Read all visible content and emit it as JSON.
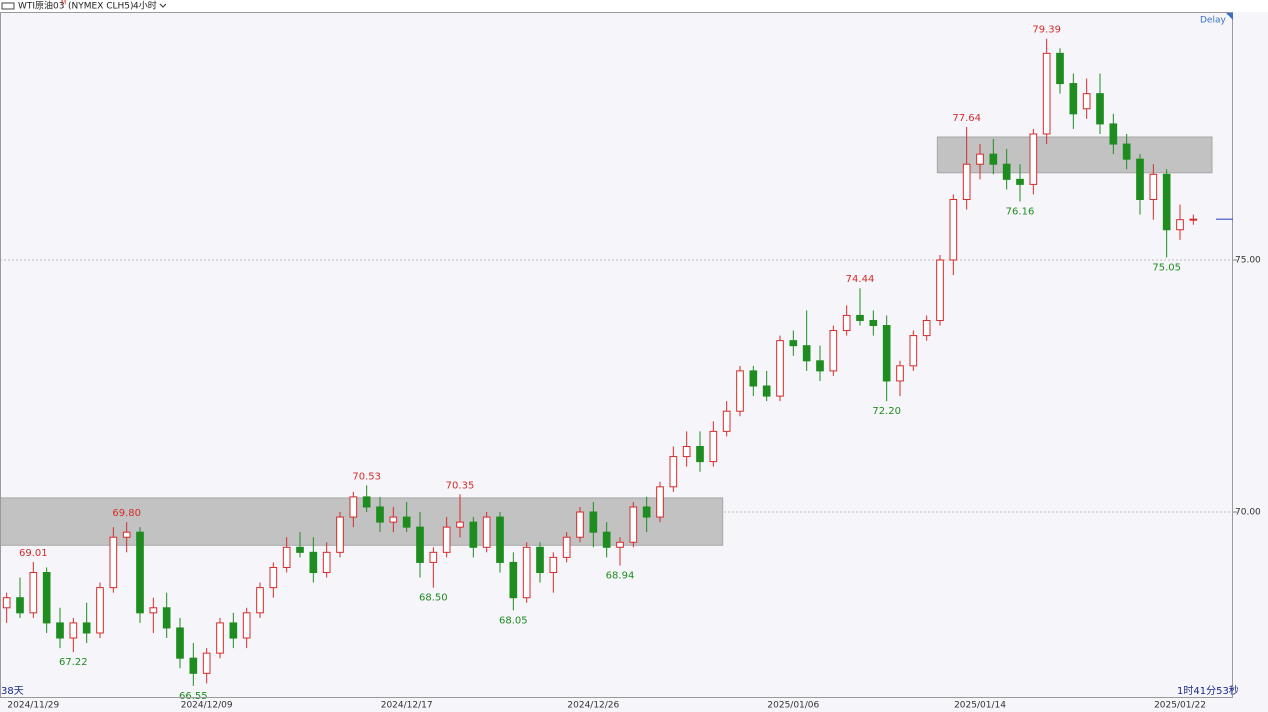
{
  "header": {
    "symbol": "WTI原油03",
    "badge": "M",
    "contract": "(NYMEX CLH5)",
    "interval": "4小时",
    "delay": "Delay"
  },
  "chart_data": {
    "type": "candlestick",
    "categories": [
      null,
      null,
      "2024/11/29",
      null,
      null,
      null,
      null,
      null,
      null,
      null,
      null,
      null,
      null,
      null,
      null,
      "2024/12/09",
      null,
      null,
      null,
      null,
      null,
      null,
      null,
      null,
      null,
      null,
      null,
      null,
      null,
      null,
      "2024/12/17",
      null,
      null,
      null,
      null,
      null,
      null,
      null,
      null,
      null,
      null,
      null,
      null,
      null,
      "2024/12/26",
      null,
      null,
      null,
      null,
      null,
      null,
      null,
      null,
      null,
      null,
      null,
      null,
      null,
      null,
      "2025/01/06",
      null,
      null,
      null,
      null,
      null,
      null,
      null,
      null,
      null,
      null,
      null,
      null,
      null,
      "2025/01/14",
      null,
      null,
      null,
      null,
      null,
      null,
      null,
      null,
      null,
      null,
      null,
      null,
      null,
      null,
      "2025/01/22",
      null
    ],
    "values": [
      [
        68.1,
        68.4,
        67.8,
        68.3
      ],
      [
        68.3,
        68.7,
        67.9,
        68.0
      ],
      [
        68.0,
        69.01,
        67.9,
        68.8
      ],
      [
        68.8,
        68.9,
        67.6,
        67.8
      ],
      [
        67.8,
        68.1,
        67.3,
        67.5
      ],
      [
        67.5,
        67.9,
        67.22,
        67.8
      ],
      [
        67.8,
        68.2,
        67.4,
        67.6
      ],
      [
        67.6,
        68.6,
        67.5,
        68.5
      ],
      [
        68.5,
        69.7,
        68.4,
        69.5
      ],
      [
        69.5,
        69.8,
        69.2,
        69.6
      ],
      [
        69.6,
        69.7,
        67.8,
        68.0
      ],
      [
        68.0,
        68.3,
        67.6,
        68.1
      ],
      [
        68.1,
        68.4,
        67.5,
        67.7
      ],
      [
        67.7,
        67.9,
        66.9,
        67.1
      ],
      [
        67.1,
        67.4,
        66.55,
        66.8
      ],
      [
        66.8,
        67.3,
        66.6,
        67.2
      ],
      [
        67.2,
        67.9,
        67.1,
        67.8
      ],
      [
        67.8,
        68.0,
        67.3,
        67.5
      ],
      [
        67.5,
        68.1,
        67.3,
        68.0
      ],
      [
        68.0,
        68.6,
        67.9,
        68.5
      ],
      [
        68.5,
        69.0,
        68.3,
        68.9
      ],
      [
        68.9,
        69.5,
        68.8,
        69.3
      ],
      [
        69.3,
        69.6,
        69.1,
        69.2
      ],
      [
        69.2,
        69.5,
        68.6,
        68.8
      ],
      [
        68.8,
        69.4,
        68.7,
        69.2
      ],
      [
        69.2,
        70.0,
        69.1,
        69.9
      ],
      [
        69.9,
        70.4,
        69.7,
        70.3
      ],
      [
        70.3,
        70.53,
        70.0,
        70.1
      ],
      [
        70.1,
        70.3,
        69.6,
        69.8
      ],
      [
        69.8,
        70.1,
        69.6,
        69.9
      ],
      [
        69.9,
        70.2,
        69.6,
        69.7
      ],
      [
        69.7,
        70.0,
        68.7,
        69.0
      ],
      [
        69.0,
        69.3,
        68.5,
        69.2
      ],
      [
        69.2,
        69.9,
        69.1,
        69.7
      ],
      [
        69.7,
        70.35,
        69.5,
        69.8
      ],
      [
        69.8,
        69.9,
        69.1,
        69.3
      ],
      [
        69.3,
        70.0,
        69.2,
        69.9
      ],
      [
        69.9,
        70.0,
        68.8,
        69.0
      ],
      [
        69.0,
        69.2,
        68.05,
        68.3
      ],
      [
        68.3,
        69.4,
        68.2,
        69.3
      ],
      [
        69.3,
        69.4,
        68.6,
        68.8
      ],
      [
        68.8,
        69.2,
        68.4,
        69.1
      ],
      [
        69.1,
        69.6,
        69.0,
        69.5
      ],
      [
        69.5,
        70.1,
        69.4,
        70.0
      ],
      [
        70.0,
        70.2,
        69.3,
        69.6
      ],
      [
        69.6,
        69.8,
        69.1,
        69.3
      ],
      [
        69.3,
        69.5,
        68.94,
        69.4
      ],
      [
        69.4,
        70.2,
        69.3,
        70.1
      ],
      [
        70.1,
        70.3,
        69.6,
        69.9
      ],
      [
        69.9,
        70.6,
        69.8,
        70.5
      ],
      [
        70.5,
        71.3,
        70.4,
        71.1
      ],
      [
        71.1,
        71.6,
        70.9,
        71.3
      ],
      [
        71.3,
        71.6,
        70.8,
        71.0
      ],
      [
        71.0,
        71.8,
        70.9,
        71.6
      ],
      [
        71.6,
        72.2,
        71.5,
        72.0
      ],
      [
        72.0,
        72.9,
        71.9,
        72.8
      ],
      [
        72.8,
        72.9,
        72.3,
        72.5
      ],
      [
        72.5,
        72.8,
        72.2,
        72.3
      ],
      [
        72.3,
        73.5,
        72.2,
        73.4
      ],
      [
        73.4,
        73.6,
        73.1,
        73.3
      ],
      [
        73.3,
        74.0,
        72.8,
        73.0
      ],
      [
        73.0,
        73.3,
        72.6,
        72.8
      ],
      [
        72.8,
        73.7,
        72.7,
        73.6
      ],
      [
        73.6,
        74.1,
        73.5,
        73.9
      ],
      [
        73.9,
        74.44,
        73.7,
        73.8
      ],
      [
        73.8,
        74.0,
        73.5,
        73.7
      ],
      [
        73.7,
        73.9,
        72.2,
        72.6
      ],
      [
        72.6,
        73.0,
        72.3,
        72.9
      ],
      [
        72.9,
        73.6,
        72.8,
        73.5
      ],
      [
        73.5,
        73.9,
        73.4,
        73.8
      ],
      [
        73.8,
        75.1,
        73.7,
        75.0
      ],
      [
        75.0,
        76.3,
        74.7,
        76.2
      ],
      [
        76.2,
        77.64,
        76.0,
        76.9
      ],
      [
        76.9,
        77.3,
        76.6,
        77.1
      ],
      [
        77.1,
        77.4,
        76.7,
        76.9
      ],
      [
        76.9,
        77.2,
        76.4,
        76.6
      ],
      [
        76.6,
        76.9,
        76.16,
        76.5
      ],
      [
        76.5,
        77.6,
        76.3,
        77.5
      ],
      [
        77.5,
        79.39,
        77.3,
        79.1
      ],
      [
        79.1,
        79.2,
        78.3,
        78.5
      ],
      [
        78.5,
        78.7,
        77.6,
        77.9
      ],
      [
        78.0,
        78.6,
        77.8,
        78.3
      ],
      [
        78.3,
        78.7,
        77.5,
        77.7
      ],
      [
        77.7,
        77.9,
        77.1,
        77.3
      ],
      [
        77.3,
        77.5,
        76.8,
        77.0
      ],
      [
        77.0,
        77.1,
        75.9,
        76.2
      ],
      [
        76.2,
        76.9,
        75.8,
        76.7
      ],
      [
        76.7,
        76.8,
        75.05,
        75.6
      ],
      [
        75.6,
        76.1,
        75.4,
        75.8
      ],
      [
        75.8,
        75.9,
        75.7,
        75.81
      ]
    ],
    "up_color": "#d62b2b",
    "down_color": "#1f8c1f",
    "ylim": [
      66.33,
      79.92
    ],
    "yticks": [
      {
        "value": 70,
        "label": "70.00"
      },
      {
        "value": 75,
        "label": "75.00"
      }
    ],
    "grid": true,
    "high_labels": [
      {
        "text": "69.01",
        "index": 2
      },
      {
        "text": "69.80",
        "index": 9
      },
      {
        "text": "70.53",
        "index": 27
      },
      {
        "text": "70.35",
        "index": 34
      },
      {
        "text": "74.44",
        "index": 64
      },
      {
        "text": "77.64",
        "index": 72
      },
      {
        "text": "79.39",
        "index": 78
      }
    ],
    "low_labels": [
      {
        "text": "67.22",
        "index": 5
      },
      {
        "text": "66.55",
        "index": 14
      },
      {
        "text": "68.50",
        "index": 32
      },
      {
        "text": "68.05",
        "index": 38
      },
      {
        "text": "68.94",
        "index": 46
      },
      {
        "text": "72.20",
        "index": 66
      },
      {
        "text": "76.16",
        "index": 76
      },
      {
        "text": "75.05",
        "index": 87
      }
    ],
    "zones": [
      {
        "y": [
          69.34,
          70.28
        ],
        "x": [
          0,
          54.2
        ]
      },
      {
        "y": [
          76.73,
          77.44
        ],
        "x": [
          70.3,
          90.9
        ]
      }
    ],
    "zone_color": "#bdbdbd",
    "last_price": 75.81,
    "last_price_color": "#3b4fc8"
  },
  "footer": {
    "left": "38天",
    "right": "1时41分53秒"
  }
}
